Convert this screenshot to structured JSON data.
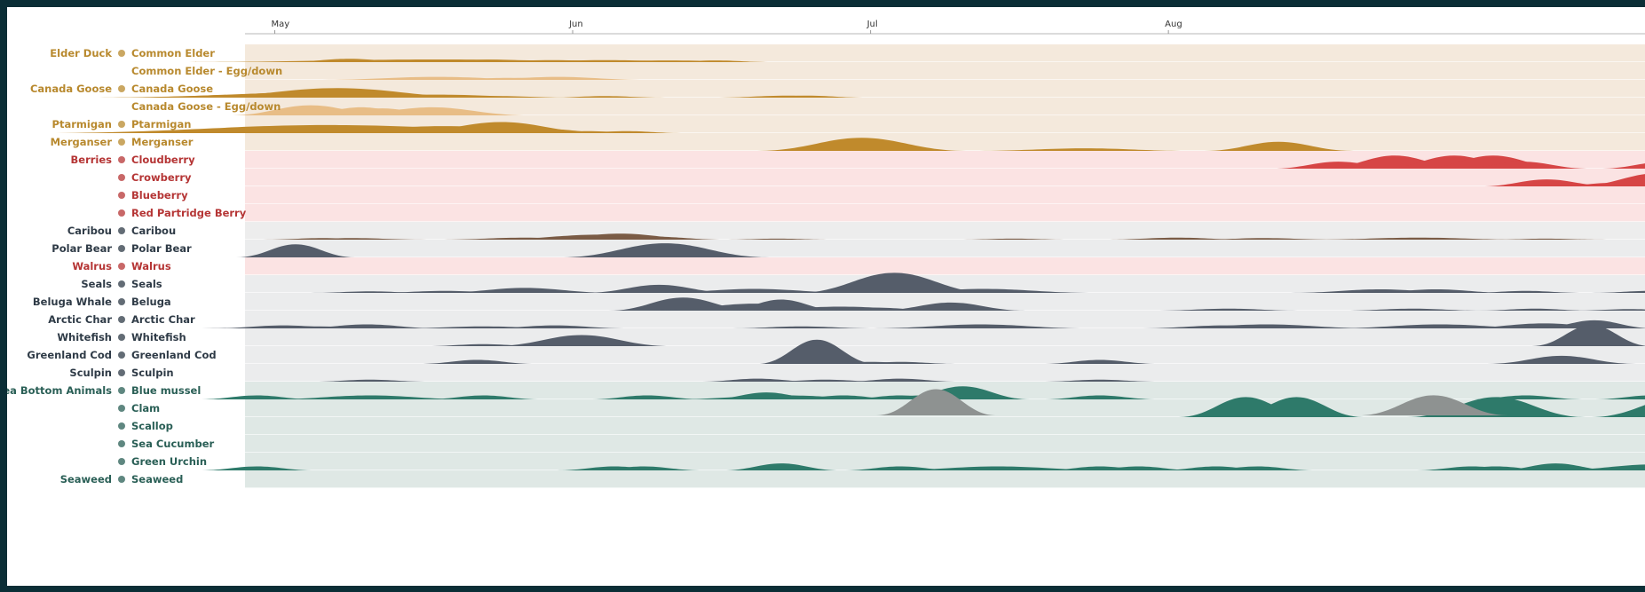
{
  "chart_data": {
    "type": "area",
    "x_ticks": [
      "May",
      "Jun",
      "Jul",
      "Aug"
    ],
    "colors": {
      "bird": "#c08a2c",
      "bird_light": "#e8bd86",
      "berry": "#d64545",
      "mammal": "#7a5b45",
      "sea": "#555d6a",
      "bottom": "#2e7a6a",
      "grey": "#8e9291"
    },
    "rows": [
      {
        "category": "Elder Duck",
        "label": "Common Elder",
        "icon": "eider-duck-icon",
        "group": "bird",
        "color": "bird",
        "peaks": [
          [
            0.33,
            0.35,
            0.9
          ],
          [
            0.27,
            0.64,
            3.5
          ],
          [
            0.25,
            0.83,
            1.0
          ],
          [
            0.2,
            1.03,
            1.4
          ],
          [
            0.2,
            1.21,
            1.6
          ],
          [
            0.17,
            1.41,
            1.5
          ],
          [
            0.17,
            1.58,
            0.8
          ]
        ]
      },
      {
        "category": "",
        "label": "Common Elder - Egg/down",
        "icon": "",
        "group": "bird",
        "color": "bird_light",
        "peaks": [
          [
            0.3,
            0.64,
            1.6
          ],
          [
            0.2,
            0.88,
            0.9
          ],
          [
            0.2,
            0.94,
            0.9
          ],
          [
            0.3,
            1.05,
            1.2
          ]
        ]
      },
      {
        "category": "Canada Goose",
        "label": "Canada Goose",
        "icon": "canada-goose-icon",
        "group": "bird",
        "color": "bird",
        "peaks": [
          [
            0.3,
            0.06,
            1.2
          ],
          [
            0.35,
            0.12,
            2.5
          ],
          [
            0.45,
            0.17,
            2.5
          ],
          [
            0.55,
            0.2,
            2.0
          ],
          [
            0.7,
            0.26,
            2.0
          ],
          [
            0.95,
            0.31,
            2.0
          ],
          [
            0.25,
            0.38,
            1.2
          ],
          [
            0.3,
            0.48,
            1.2
          ],
          [
            0.3,
            0.64,
            1.8
          ],
          [
            0.2,
            0.72,
            1.2
          ],
          [
            0.15,
            0.85,
            1.0
          ],
          [
            0.15,
            1.21,
            0.8
          ],
          [
            0.2,
            1.82,
            1.0
          ],
          [
            0.2,
            1.89,
            0.8
          ]
        ]
      },
      {
        "category": "",
        "label": "Canada Goose - Egg/down",
        "icon": "",
        "group": "bird",
        "color": "bird_light",
        "peaks": [
          [
            0.25,
            0.18,
            0.8
          ],
          [
            1.0,
            0.22,
            1.1
          ],
          [
            0.6,
            0.3,
            1.0
          ],
          [
            0.8,
            0.39,
            0.9
          ],
          [
            0.7,
            0.46,
            0.9
          ],
          [
            0.6,
            0.54,
            0.9
          ],
          [
            0.8,
            0.63,
            1.3
          ]
        ]
      },
      {
        "category": "Ptarmigan",
        "label": "Ptarmigan",
        "icon": "ptarmigan-icon",
        "group": "bird",
        "color": "bird",
        "peaks": [
          [
            0.8,
            0.29,
            4.0
          ],
          [
            0.7,
            0.43,
            2.0
          ],
          [
            0.6,
            0.59,
            1.0
          ],
          [
            0.7,
            0.66,
            2.0
          ],
          [
            1.1,
            0.86,
            1.4
          ],
          [
            0.4,
            1.02,
            0.9
          ],
          [
            0.2,
            1.15,
            0.8
          ],
          [
            0.2,
            1.28,
            0.8
          ]
        ]
      },
      {
        "category": "Merganser",
        "label": "Merganser",
        "icon": "merganser-icon",
        "group": "bird",
        "color": "bird",
        "peaks": [
          [
            1.3,
            2.07,
            1.4
          ],
          [
            0.15,
            2.15,
            0.8
          ],
          [
            0.25,
            2.82,
            1.5
          ],
          [
            0.9,
            3.47,
            1.0
          ],
          [
            0.15,
            3.53,
            0.8
          ]
        ]
      },
      {
        "category": "Berries",
        "label": "Cloudberry",
        "icon": "cloudberry-icon",
        "group": "berry",
        "color": "berry",
        "peaks": [
          [
            0.7,
            3.67,
            0.9
          ],
          [
            1.3,
            3.86,
            1.0
          ],
          [
            1.3,
            4.06,
            1.0
          ],
          [
            1.3,
            4.19,
            1.0
          ],
          [
            0.7,
            4.29,
            0.9
          ],
          [
            0.7,
            4.77,
            0.9
          ]
        ]
      },
      {
        "category": "",
        "label": "Crowberry",
        "icon": "crowberry-icon",
        "group": "berry",
        "color": "berry",
        "peaks": [
          [
            0.7,
            4.37,
            0.9
          ],
          [
            0.35,
            4.59,
            0.8
          ],
          [
            1.3,
            4.74,
            1.1
          ]
        ]
      },
      {
        "category": "",
        "label": "Blueberry",
        "icon": "blueberry-icon",
        "group": "berry",
        "color": "berry",
        "peaks": []
      },
      {
        "category": "",
        "label": "Red Partridge Berry",
        "icon": "partridge-berry-icon",
        "group": "berry",
        "color": "berry",
        "peaks": []
      },
      {
        "category": "Caribou",
        "label": "Caribou",
        "icon": "caribou-icon",
        "group": "mammal",
        "color": "mammal",
        "peaks": [
          [
            0.15,
            0.26,
            0.8
          ],
          [
            0.15,
            0.36,
            1.0
          ],
          [
            0.2,
            0.94,
            1.2
          ],
          [
            0.5,
            1.19,
            1.5
          ],
          [
            0.6,
            1.26,
            1.2
          ],
          [
            0.3,
            1.37,
            1.0
          ],
          [
            0.1,
            1.79,
            0.8
          ],
          [
            0.1,
            2.58,
            0.8
          ],
          [
            0.2,
            3.13,
            1.0
          ],
          [
            0.15,
            3.42,
            1.0
          ],
          [
            0.2,
            3.94,
            1.5
          ],
          [
            0.1,
            4.37,
            0.8
          ]
        ]
      },
      {
        "category": "Polar Bear",
        "label": "Polar Bear",
        "icon": "polar-bear-icon",
        "group": "sea",
        "color": "sea",
        "peaks": [
          [
            1.3,
            0.17,
            0.8
          ],
          [
            1.4,
            1.41,
            1.4
          ]
        ]
      },
      {
        "category": "Walrus",
        "label": "Walrus",
        "icon": "walrus-icon",
        "group": "berry",
        "color": "sea",
        "peaks": []
      },
      {
        "category": "Seals",
        "label": "Seals",
        "icon": "seal-icon",
        "group": "sea",
        "color": "sea",
        "peaks": [
          [
            0.15,
            0.42,
            0.8
          ],
          [
            0.2,
            0.67,
            1.0
          ],
          [
            0.5,
            0.94,
            1.2
          ],
          [
            0.8,
            1.39,
            1.0
          ],
          [
            0.4,
            1.71,
            1.4
          ],
          [
            0.15,
            2.09,
            1.0
          ],
          [
            2.0,
            2.18,
            1.3
          ],
          [
            0.4,
            2.48,
            1.5
          ],
          [
            0.35,
            3.81,
            1.2
          ],
          [
            0.35,
            4.0,
            1.0
          ],
          [
            0.2,
            4.3,
            0.8
          ],
          [
            0.2,
            4.72,
            0.8
          ]
        ]
      },
      {
        "category": "Beluga Whale",
        "label": "Beluga",
        "icon": "beluga-icon",
        "group": "sea",
        "color": "sea",
        "peaks": [
          [
            1.3,
            1.47,
            1.0
          ],
          [
            0.7,
            1.71,
            1.4
          ],
          [
            1.1,
            1.8,
            0.8
          ],
          [
            0.4,
            2.0,
            1.5
          ],
          [
            0.3,
            2.12,
            0.9
          ],
          [
            0.8,
            2.37,
            1.0
          ],
          [
            0.2,
            3.3,
            1.0
          ],
          [
            0.2,
            3.92,
            1.0
          ],
          [
            0.2,
            4.33,
            0.8
          ],
          [
            0.15,
            4.65,
            0.8
          ]
        ]
      },
      {
        "category": "Arctic Char",
        "label": "Arctic Char",
        "icon": "arctic-char-icon",
        "group": "sea",
        "color": "sea",
        "peaks": [
          [
            0.3,
            0.13,
            1.0
          ],
          [
            0.2,
            0.23,
            1.5
          ],
          [
            0.4,
            0.41,
            1.0
          ],
          [
            0.2,
            0.8,
            1.2
          ],
          [
            0.3,
            1.04,
            1.0
          ],
          [
            0.2,
            1.87,
            1.0
          ],
          [
            0.4,
            2.47,
            1.5
          ],
          [
            0.3,
            3.29,
            1.2
          ],
          [
            0.4,
            3.43,
            1.5
          ],
          [
            0.4,
            4.01,
            1.5
          ],
          [
            0.5,
            4.36,
            1.2
          ],
          [
            0.8,
            4.53,
            0.8
          ]
        ]
      },
      {
        "category": "Whitefish",
        "label": "Whitefish",
        "icon": "whitefish-icon",
        "group": "sea",
        "color": "sea",
        "peaks": [
          [
            1.1,
            1.13,
            1.2
          ],
          [
            0.2,
            0.8,
            0.8
          ],
          [
            2.1,
            4.52,
            0.8
          ]
        ]
      },
      {
        "category": "Greenland Cod",
        "label": "Greenland Cod",
        "icon": "greenland-cod-icon",
        "group": "sea",
        "color": "sea",
        "peaks": [
          [
            0.4,
            0.78,
            0.8
          ],
          [
            2.4,
            1.92,
            0.8
          ],
          [
            0.2,
            2.1,
            0.8
          ],
          [
            0.2,
            2.2,
            0.8
          ],
          [
            0.4,
            2.87,
            0.8
          ],
          [
            0.8,
            4.42,
            1.0
          ]
        ]
      },
      {
        "category": "Sculpin",
        "label": "Sculpin",
        "icon": "sculpin-icon",
        "group": "sea",
        "color": "sea",
        "peaks": [
          [
            0.2,
            0.42,
            0.8
          ],
          [
            0.3,
            1.72,
            0.8
          ],
          [
            0.2,
            1.95,
            0.8
          ],
          [
            0.3,
            2.2,
            0.8
          ],
          [
            0.2,
            2.87,
            0.8
          ]
        ]
      },
      {
        "category": "Sea Bottom Animals",
        "label": "Blue mussel",
        "icon": "blue-mussel-icon",
        "group": "bottom",
        "color": "bottom",
        "peaks": [
          [
            0.4,
            0.04,
            0.8
          ],
          [
            0.4,
            0.42,
            1.4
          ],
          [
            0.4,
            0.8,
            0.8
          ],
          [
            0.4,
            1.35,
            0.8
          ],
          [
            0.7,
            1.75,
            0.8
          ],
          [
            0.4,
            1.81,
            1.6
          ],
          [
            0.4,
            2.01,
            0.8
          ],
          [
            0.4,
            2.2,
            0.8
          ],
          [
            0.4,
            2.27,
            0.8
          ],
          [
            1.3,
            2.41,
            0.9
          ],
          [
            0.4,
            2.87,
            0.8
          ],
          [
            0.4,
            4.3,
            0.8
          ],
          [
            0.4,
            4.72,
            0.8
          ]
        ]
      },
      {
        "category": "",
        "label": "Clam",
        "icon": "clam-icon",
        "group": "bottom",
        "color": "bottom",
        "peaks": [
          [
            2.0,
            3.36,
            0.9
          ],
          [
            2.0,
            3.53,
            0.9
          ],
          [
            2.0,
            4.2,
            1.2
          ],
          [
            2.0,
            4.82,
            1.2
          ]
        ]
      },
      {
        "category": "",
        "label": "Scallop",
        "icon": "scallop-icon",
        "group": "bottom",
        "color": "bottom",
        "peaks": []
      },
      {
        "category": "",
        "label": "Sea Cucumber",
        "icon": "sea-cucumber-icon",
        "group": "bottom",
        "color": "bottom",
        "peaks": []
      },
      {
        "category": "",
        "label": "Green Urchin",
        "icon": "green-urchin-icon",
        "group": "bottom",
        "color": "bottom",
        "peaks": [
          [
            0.4,
            0.04,
            0.8
          ],
          [
            0.4,
            1.24,
            0.8
          ],
          [
            0.4,
            1.34,
            0.8
          ],
          [
            0.7,
            1.8,
            0.8
          ],
          [
            0.4,
            2.2,
            0.8
          ],
          [
            0.4,
            2.53,
            1.6
          ],
          [
            0.4,
            2.87,
            0.8
          ],
          [
            0.4,
            3.0,
            0.8
          ],
          [
            0.4,
            3.26,
            0.8
          ],
          [
            0.4,
            3.4,
            0.8
          ],
          [
            0.4,
            4.12,
            0.8
          ],
          [
            0.4,
            4.2,
            0.8
          ],
          [
            0.7,
            4.4,
            0.8
          ],
          [
            0.6,
            4.73,
            1.4
          ]
        ]
      },
      {
        "category": "Seaweed",
        "label": "Seaweed",
        "icon": "seaweed-icon",
        "group": "bottom",
        "color": "bottom",
        "peaks": []
      }
    ],
    "grey_peaks": [
      {
        "row": 19,
        "peaks": [
          [
            2.6,
            2.32,
            0.8
          ],
          [
            2.0,
            3.99,
            1.0
          ]
        ]
      }
    ],
    "ylim": [
      0,
      3
    ]
  }
}
